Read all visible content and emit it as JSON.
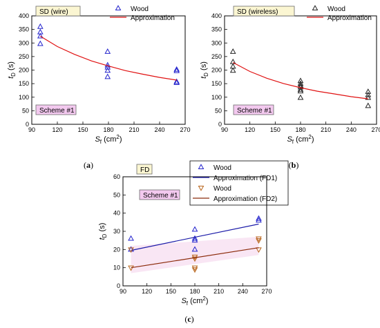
{
  "chart_data": [
    {
      "panel": "a",
      "type": "scatter",
      "caption_letter": "a",
      "label_box": "SD (wire)",
      "scheme_label": "Scheme #1",
      "xlabel_main": "S",
      "xlabel_sub": "f",
      "xlabel_unit": " (cm",
      "xlabel_sup": "2",
      "xlabel_close": ")",
      "ylabel_main": "t",
      "ylabel_sub": "D",
      "ylabel_unit": " (s)",
      "xlim": [
        90,
        270
      ],
      "ylim": [
        0,
        400
      ],
      "xticks": [
        90,
        120,
        150,
        180,
        210,
        240,
        270
      ],
      "yticks": [
        0,
        50,
        100,
        150,
        200,
        250,
        300,
        350,
        400
      ],
      "series": [
        {
          "name": "Wood",
          "kind": "points",
          "marker": "triangle-up",
          "color": "#2222cc",
          "points": [
            [
              100,
              360
            ],
            [
              100,
              340
            ],
            [
              100,
              325
            ],
            [
              100,
              297
            ],
            [
              179,
              268
            ],
            [
              179,
              218
            ],
            [
              179,
              210
            ],
            [
              179,
              198
            ],
            [
              179,
              175
            ],
            [
              260,
              202
            ],
            [
              260,
              197
            ],
            [
              260,
              157
            ],
            [
              260,
              153
            ]
          ]
        },
        {
          "name": "Approximation",
          "kind": "line",
          "color": "#e01010",
          "points": [
            [
              100,
              325
            ],
            [
              120,
              287
            ],
            [
              140,
              258
            ],
            [
              160,
              234
            ],
            [
              180,
              215
            ],
            [
              200,
              198
            ],
            [
              220,
              185
            ],
            [
              240,
              173
            ],
            [
              260,
              163
            ]
          ]
        }
      ]
    },
    {
      "panel": "b",
      "type": "scatter",
      "caption_letter": "b",
      "label_box": "SD (wireless)",
      "scheme_label": "Scheme #1",
      "xlabel_main": "S",
      "xlabel_sub": "f",
      "xlabel_unit": " (cm",
      "xlabel_sup": "2",
      "xlabel_close": ")",
      "ylabel_main": "t",
      "ylabel_sub": "D",
      "ylabel_unit": " (s)",
      "xlim": [
        90,
        270
      ],
      "ylim": [
        0,
        400
      ],
      "xticks": [
        90,
        120,
        150,
        180,
        210,
        240,
        270
      ],
      "yticks": [
        0,
        50,
        100,
        150,
        200,
        250,
        300,
        350,
        400
      ],
      "series": [
        {
          "name": "Wood",
          "kind": "points",
          "marker": "triangle-up",
          "color": "#222222",
          "points": [
            [
              100,
              268
            ],
            [
              100,
              230
            ],
            [
              100,
              213
            ],
            [
              100,
              198
            ],
            [
              180,
              160
            ],
            [
              180,
              150
            ],
            [
              180,
              143
            ],
            [
              180,
              137
            ],
            [
              180,
              128
            ],
            [
              180,
              122
            ],
            [
              180,
              98
            ],
            [
              260,
              120
            ],
            [
              260,
              108
            ],
            [
              260,
              98
            ],
            [
              260,
              68
            ]
          ]
        },
        {
          "name": "Approximation",
          "kind": "line",
          "color": "#e01010",
          "points": [
            [
              100,
              228
            ],
            [
              120,
              195
            ],
            [
              140,
              170
            ],
            [
              160,
              150
            ],
            [
              180,
              135
            ],
            [
              200,
              122
            ],
            [
              220,
              112
            ],
            [
              240,
              102
            ],
            [
              260,
              94
            ]
          ]
        }
      ]
    },
    {
      "panel": "c",
      "type": "scatter",
      "caption_letter": "c",
      "label_box": "FD",
      "scheme_label": "Scheme #1",
      "xlabel_main": "S",
      "xlabel_sub": "f",
      "xlabel_unit": " (cm",
      "xlabel_sup": "2",
      "xlabel_close": ")",
      "ylabel_main": "t",
      "ylabel_sub": "D",
      "ylabel_unit": " (s)",
      "xlim": [
        90,
        270
      ],
      "ylim": [
        0,
        60
      ],
      "xticks": [
        90,
        120,
        150,
        180,
        210,
        240,
        270
      ],
      "yticks": [
        0,
        10,
        20,
        30,
        40,
        50,
        60
      ],
      "series": [
        {
          "name": "Wood",
          "kind": "points",
          "marker": "triangle-up",
          "color": "#2222cc",
          "points": [
            [
              100,
              26
            ],
            [
              100,
              20
            ],
            [
              180,
              31
            ],
            [
              180,
              26
            ],
            [
              180,
              25
            ],
            [
              180,
              20
            ],
            [
              260,
              37
            ],
            [
              260,
              36
            ]
          ]
        },
        {
          "name": "Approximation (FD1)",
          "kind": "line",
          "color": "#1a1aa8",
          "points": [
            [
              100,
              19.5
            ],
            [
              260,
              34
            ]
          ]
        },
        {
          "name": "Wood",
          "kind": "points",
          "marker": "triangle-down",
          "color": "#b8641a",
          "points": [
            [
              100,
              20
            ],
            [
              100,
              10
            ],
            [
              180,
              16
            ],
            [
              180,
              15
            ],
            [
              180,
              10
            ],
            [
              180,
              9
            ],
            [
              260,
              26
            ],
            [
              260,
              25
            ],
            [
              260,
              20
            ]
          ]
        },
        {
          "name": "Approximation (FD2)",
          "kind": "line",
          "color": "#8b2a0a",
          "points": [
            [
              100,
              10
            ],
            [
              260,
              21
            ]
          ]
        }
      ]
    }
  ]
}
